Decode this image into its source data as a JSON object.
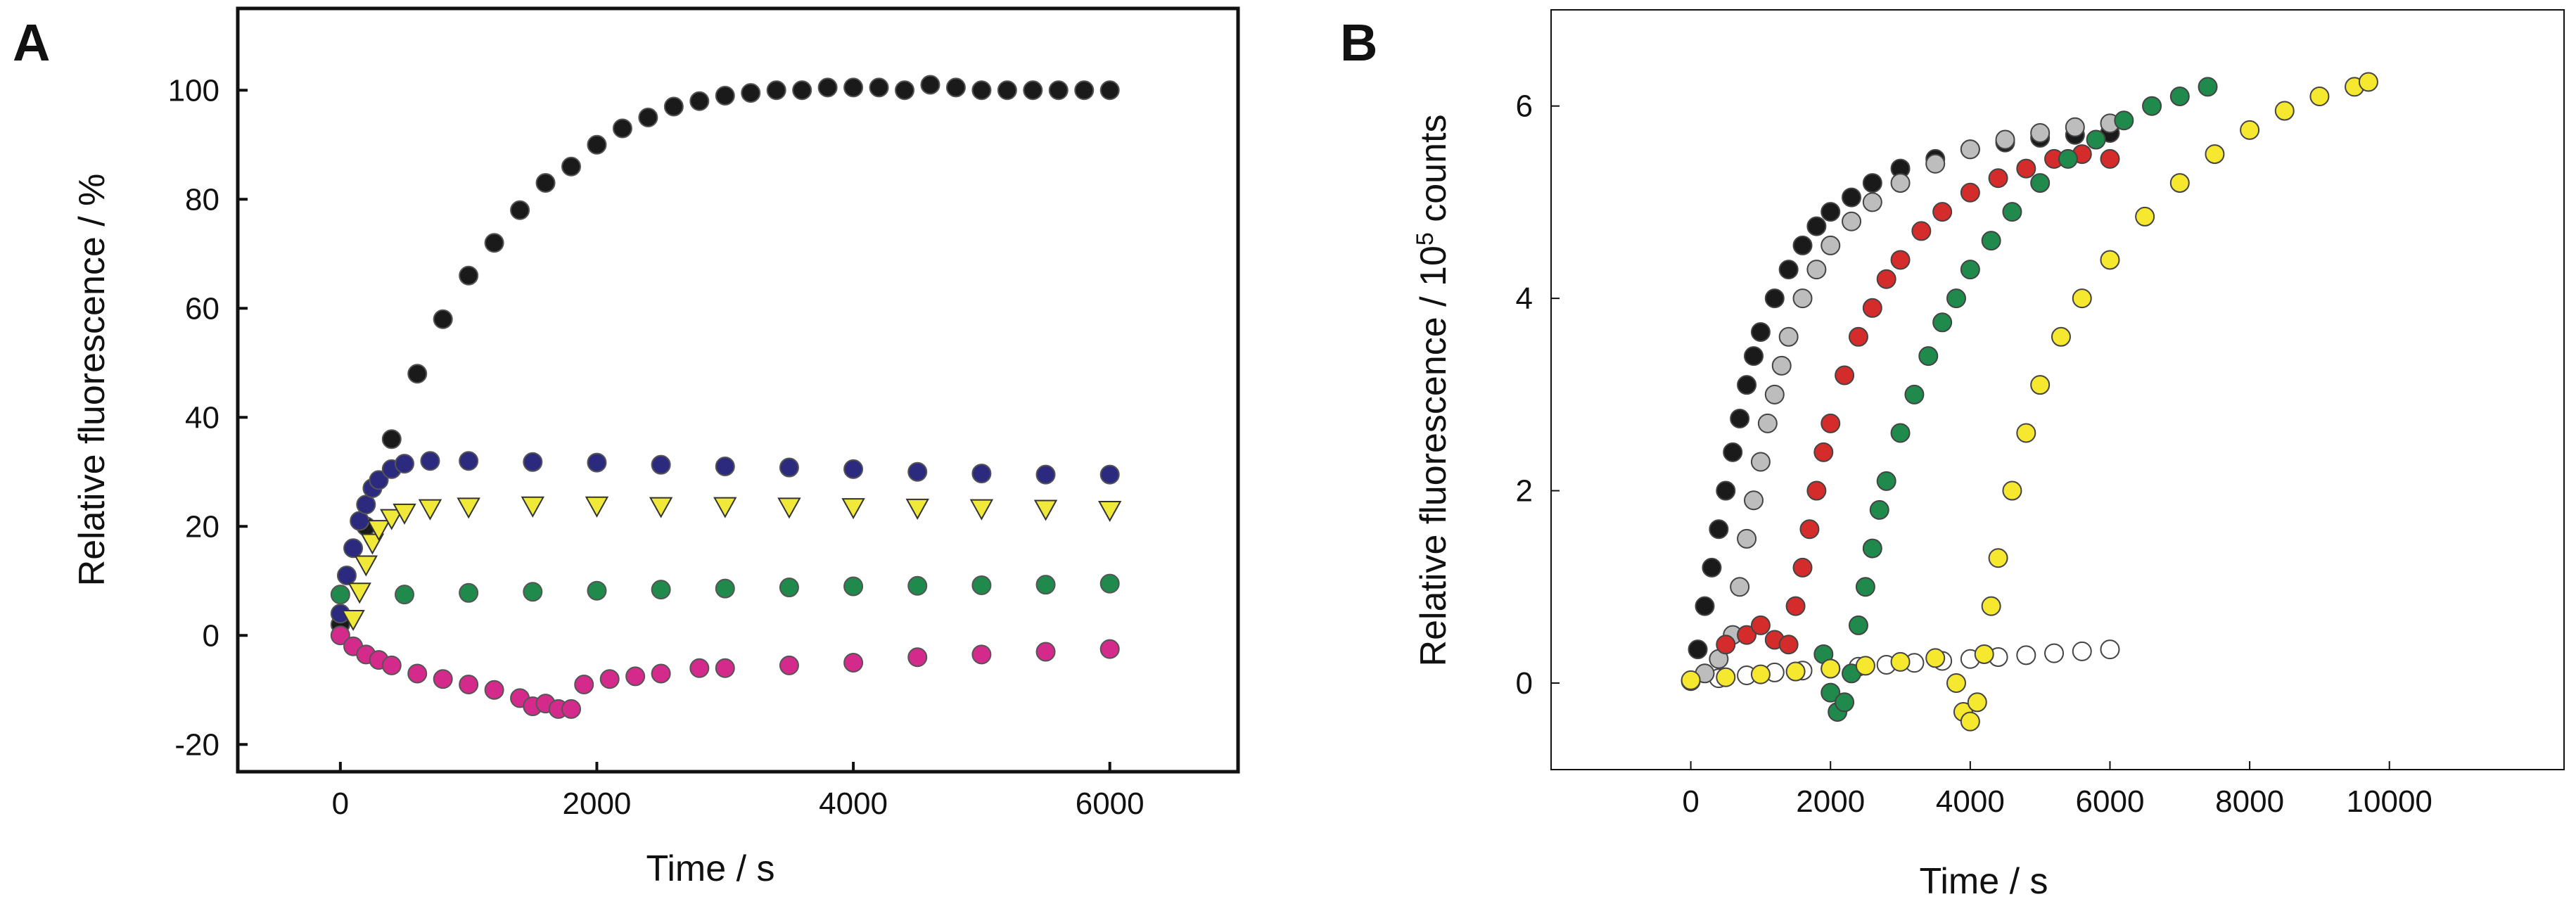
{
  "figure": {
    "panel_a_label": "A",
    "panel_b_label": "B"
  },
  "chart_data": [
    {
      "type": "scatter",
      "panel": "A",
      "title": "",
      "xlabel": "Time / s",
      "ylabel": "Relative fluorescence / %",
      "xlim": [
        -800,
        7000
      ],
      "ylim": [
        -25,
        115
      ],
      "xticks": [
        0,
        2000,
        4000,
        6000
      ],
      "yticks": [
        -20,
        0,
        20,
        40,
        60,
        80,
        100
      ],
      "series": [
        {
          "name": "black",
          "color": "#1a1a1a",
          "marker": "circle",
          "x": [
            0,
            200,
            400,
            600,
            800,
            1000,
            1200,
            1400,
            1600,
            1800,
            2000,
            2200,
            2400,
            2600,
            2800,
            3000,
            3200,
            3400,
            3600,
            3800,
            4000,
            4200,
            4400,
            4600,
            4800,
            5000,
            5200,
            5400,
            5600,
            5800,
            6000
          ],
          "y": [
            2,
            20,
            36,
            48,
            58,
            66,
            72,
            78,
            83,
            86,
            90,
            93,
            95,
            97,
            98,
            99,
            99.5,
            100,
            100,
            100.5,
            100.5,
            100.5,
            100,
            101,
            100.5,
            100,
            100,
            100,
            100,
            100,
            100
          ]
        },
        {
          "name": "blue",
          "color": "#2b2a7e",
          "marker": "circle",
          "x": [
            0,
            50,
            100,
            150,
            200,
            250,
            300,
            400,
            500,
            700,
            1000,
            1500,
            2000,
            2500,
            3000,
            3500,
            4000,
            4500,
            5000,
            5500,
            6000
          ],
          "y": [
            4,
            11,
            16,
            21,
            24,
            27,
            28.5,
            30.5,
            31.5,
            32,
            32,
            31.8,
            31.7,
            31.3,
            31,
            30.8,
            30.5,
            30,
            29.7,
            29.5,
            29.5
          ]
        },
        {
          "name": "yellow",
          "color": "#f0e93a",
          "marker": "triangle-down",
          "x": [
            100,
            150,
            200,
            250,
            300,
            400,
            500,
            700,
            1000,
            1500,
            2000,
            2500,
            3000,
            3500,
            4000,
            4500,
            5000,
            5500,
            6000
          ],
          "y": [
            3,
            8,
            13,
            17,
            19.5,
            21.5,
            22.5,
            23.3,
            23.6,
            23.8,
            23.8,
            23.7,
            23.7,
            23.6,
            23.5,
            23.4,
            23.3,
            23.2,
            23
          ]
        },
        {
          "name": "green",
          "color": "#1f8a4c",
          "marker": "circle",
          "x": [
            0,
            500,
            1000,
            1500,
            2000,
            2500,
            3000,
            3500,
            4000,
            4500,
            5000,
            5500,
            6000
          ],
          "y": [
            7.5,
            7.5,
            7.8,
            8,
            8.2,
            8.4,
            8.6,
            8.8,
            9,
            9.1,
            9.2,
            9.3,
            9.5
          ]
        },
        {
          "name": "magenta",
          "color": "#d42a8c",
          "marker": "circle",
          "x": [
            0,
            100,
            200,
            300,
            400,
            600,
            800,
            1000,
            1200,
            1400,
            1500,
            1600,
            1700,
            1800,
            1900,
            2100,
            2300,
            2500,
            2800,
            3000,
            3500,
            4000,
            4500,
            5000,
            5500,
            6000
          ],
          "y": [
            0,
            -2,
            -3.5,
            -4.5,
            -5.5,
            -7,
            -8,
            -9,
            -10,
            -11.5,
            -13,
            -12.5,
            -13.5,
            -13.5,
            -9,
            -8,
            -7.5,
            -7,
            -6,
            -6,
            -5.5,
            -5,
            -4,
            -3.5,
            -3,
            -2.5
          ]
        }
      ]
    },
    {
      "type": "scatter",
      "panel": "B",
      "title": "",
      "xlabel": "Time / s",
      "ylabel": "Relative fluorescence / 10",
      "ylabel_superscript": "5",
      "ylabel_suffix": " counts",
      "xlim": [
        -2000,
        12500
      ],
      "ylim": [
        -0.9,
        7.0
      ],
      "xticks": [
        0,
        2000,
        4000,
        6000,
        8000,
        10000
      ],
      "yticks": [
        0,
        2,
        4,
        6
      ],
      "series": [
        {
          "name": "white (baseline)",
          "color": "#ffffff",
          "marker": "circle",
          "x": [
            0,
            400,
            800,
            1200,
            1600,
            2000,
            2400,
            2800,
            3200,
            3600,
            4000,
            4400,
            4800,
            5200,
            5600,
            6000
          ],
          "y": [
            0.02,
            0.05,
            0.08,
            0.11,
            0.13,
            0.15,
            0.17,
            0.19,
            0.21,
            0.23,
            0.25,
            0.27,
            0.29,
            0.31,
            0.33,
            0.35
          ]
        },
        {
          "name": "black",
          "color": "#1a1a1a",
          "marker": "circle",
          "x": [
            100,
            200,
            300,
            400,
            500,
            600,
            700,
            800,
            900,
            1000,
            1200,
            1400,
            1600,
            1800,
            2000,
            2300,
            2600,
            3000,
            3500,
            4000,
            4500,
            5000,
            5500,
            6000
          ],
          "y": [
            0.35,
            0.8,
            1.2,
            1.6,
            2.0,
            2.4,
            2.75,
            3.1,
            3.4,
            3.65,
            4.0,
            4.3,
            4.55,
            4.75,
            4.9,
            5.05,
            5.2,
            5.35,
            5.45,
            5.55,
            5.62,
            5.67,
            5.7,
            5.72
          ]
        },
        {
          "name": "gray",
          "color": "#bdbdbd",
          "marker": "circle",
          "x": [
            200,
            400,
            600,
            700,
            800,
            900,
            1000,
            1100,
            1200,
            1300,
            1400,
            1600,
            1800,
            2000,
            2300,
            2600,
            3000,
            3500,
            4000,
            4500,
            5000,
            5500,
            6000
          ],
          "y": [
            0.1,
            0.25,
            0.5,
            1.0,
            1.5,
            1.9,
            2.3,
            2.7,
            3.0,
            3.3,
            3.6,
            4.0,
            4.3,
            4.55,
            4.8,
            5.0,
            5.2,
            5.4,
            5.55,
            5.65,
            5.72,
            5.78,
            5.82
          ]
        },
        {
          "name": "red",
          "color": "#d42b2b",
          "marker": "circle",
          "x": [
            500,
            800,
            1000,
            1200,
            1400,
            1500,
            1600,
            1700,
            1800,
            1900,
            2000,
            2200,
            2400,
            2600,
            2800,
            3000,
            3300,
            3600,
            4000,
            4400,
            4800,
            5200,
            5600,
            6000
          ],
          "y": [
            0.4,
            0.5,
            0.6,
            0.45,
            0.4,
            0.8,
            1.2,
            1.6,
            2.0,
            2.4,
            2.7,
            3.2,
            3.6,
            3.9,
            4.2,
            4.4,
            4.7,
            4.9,
            5.1,
            5.25,
            5.35,
            5.45,
            5.5,
            5.45
          ]
        },
        {
          "name": "green",
          "color": "#1f8a4c",
          "marker": "circle",
          "x": [
            1900,
            2000,
            2100,
            2200,
            2300,
            2400,
            2500,
            2600,
            2700,
            2800,
            3000,
            3200,
            3400,
            3600,
            3800,
            4000,
            4300,
            4600,
            5000,
            5400,
            5800,
            6200,
            6600,
            7000,
            7400
          ],
          "y": [
            0.3,
            -0.1,
            -0.3,
            -0.2,
            0.1,
            0.6,
            1.0,
            1.4,
            1.8,
            2.1,
            2.6,
            3.0,
            3.4,
            3.75,
            4.0,
            4.3,
            4.6,
            4.9,
            5.2,
            5.45,
            5.65,
            5.85,
            6.0,
            6.1,
            6.2
          ]
        },
        {
          "name": "yellow",
          "color": "#f5e82e",
          "marker": "circle",
          "x": [
            0,
            500,
            1000,
            1500,
            2000,
            2500,
            3000,
            3500,
            3800,
            3900,
            4000,
            4100,
            4200,
            4300,
            4400,
            4600,
            4800,
            5000,
            5300,
            5600,
            6000,
            6500,
            7000,
            7500,
            8000,
            8500,
            9000,
            9500,
            9700
          ],
          "y": [
            0.03,
            0.06,
            0.09,
            0.12,
            0.15,
            0.18,
            0.22,
            0.26,
            0.0,
            -0.3,
            -0.4,
            -0.2,
            0.3,
            0.8,
            1.3,
            2.0,
            2.6,
            3.1,
            3.6,
            4.0,
            4.4,
            4.85,
            5.2,
            5.5,
            5.75,
            5.95,
            6.1,
            6.2,
            6.25
          ]
        }
      ]
    }
  ]
}
